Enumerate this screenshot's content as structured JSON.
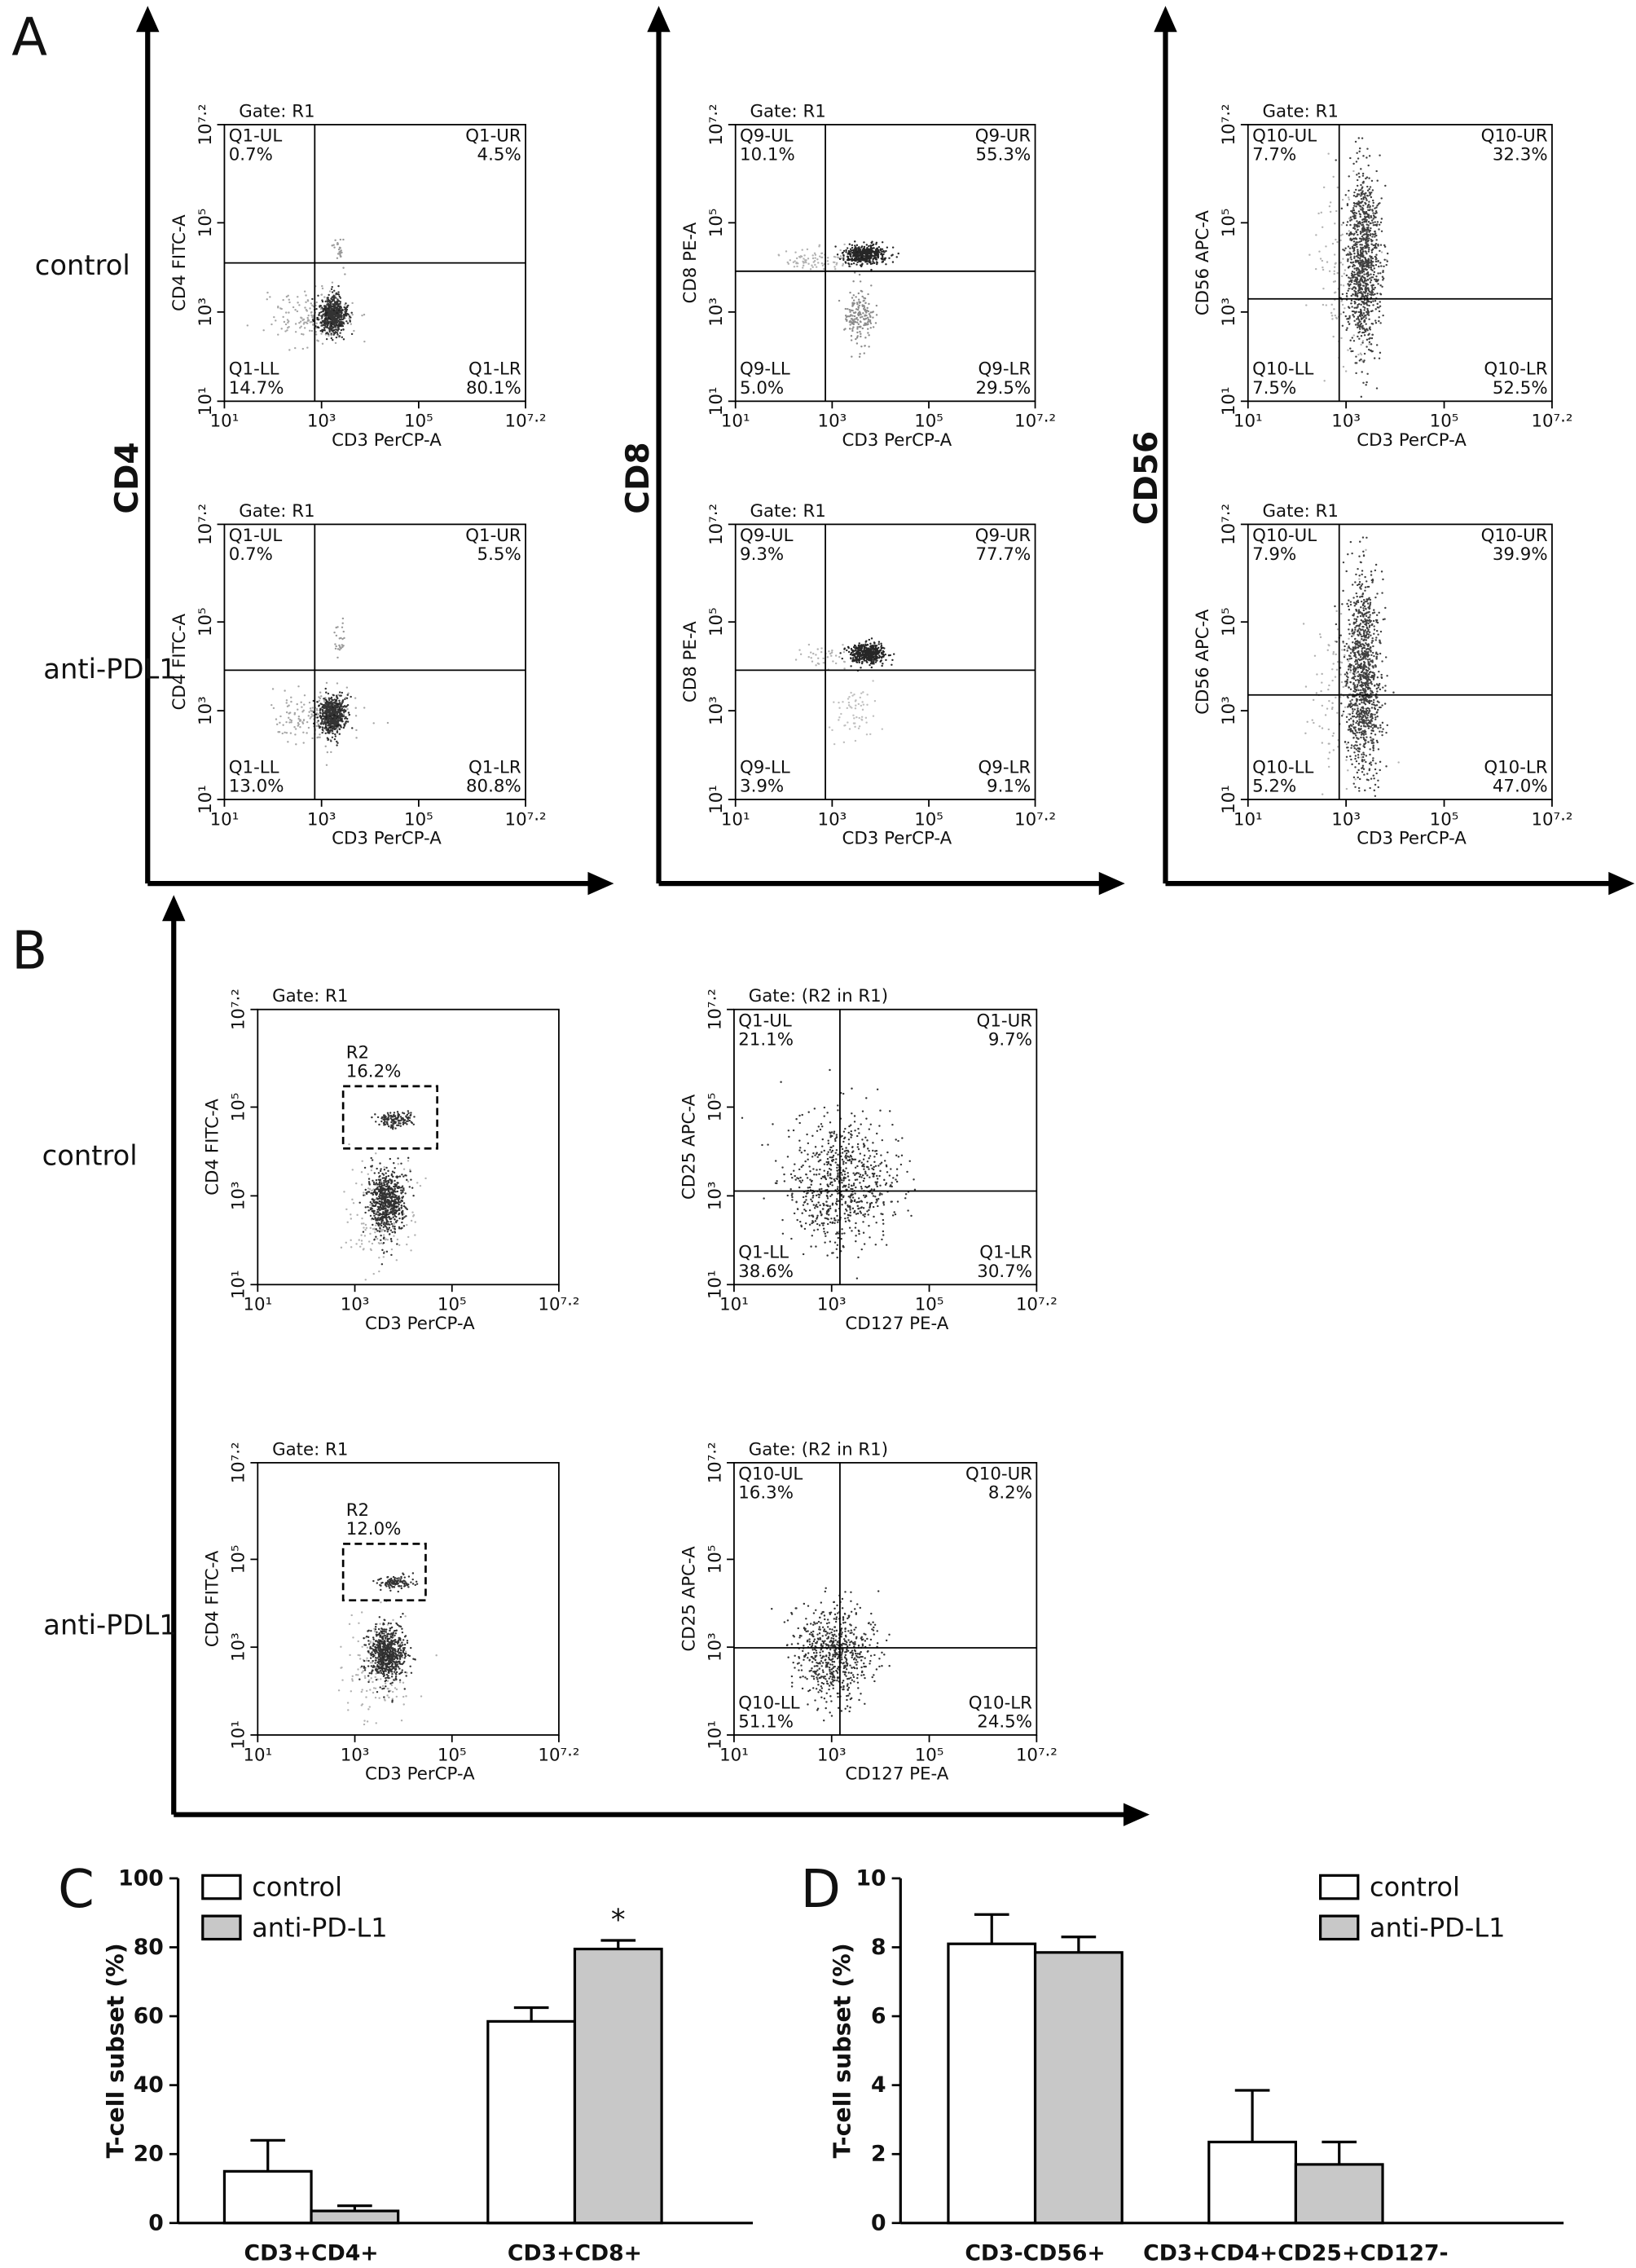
{
  "panel_labels": {
    "a": "A",
    "b": "B"
  },
  "flow_axis": {
    "log": true,
    "lim": [
      10,
      15848932
    ],
    "ticks": [
      {
        "value": 10,
        "label": "10¹"
      },
      {
        "value": 1000,
        "label": "10³"
      },
      {
        "value": 100000,
        "label": "10⁵"
      },
      {
        "value": 15848932,
        "label": "10⁷·²"
      }
    ]
  },
  "panel_a": {
    "row_labels": [
      "control",
      "anti-PDL1"
    ],
    "columns": [
      {
        "label": "CD4",
        "x_label": "CD3 PerCP-A",
        "y_label": "CD4 FITC-A",
        "quadrant_names": [
          "Q1-UL",
          "Q1-UR",
          "Q1-LL",
          "Q1-LR"
        ],
        "plots": [
          {
            "gate": "Gate: R1",
            "values": [
              0.7,
              4.5,
              14.7,
              80.1
            ],
            "value_labels": [
              "0.7%",
              "4.5%",
              "14.7%",
              "80.1%"
            ]
          },
          {
            "gate": "Gate: R1",
            "values": [
              0.7,
              5.5,
              13.0,
              80.8
            ],
            "value_labels": [
              "0.7%",
              "5.5%",
              "13.0%",
              "80.8%"
            ]
          }
        ]
      },
      {
        "label": "CD8",
        "x_label": "CD3 PerCP-A",
        "y_label": "CD8 PE-A",
        "quadrant_names": [
          "Q9-UL",
          "Q9-UR",
          "Q9-LL",
          "Q9-LR"
        ],
        "plots": [
          {
            "gate": "Gate: R1",
            "values": [
              10.1,
              55.3,
              5.0,
              29.5
            ],
            "value_labels": [
              "10.1%",
              "55.3%",
              "5.0%",
              "29.5%"
            ]
          },
          {
            "gate": "Gate: R1",
            "values": [
              9.3,
              77.7,
              3.9,
              9.1
            ],
            "value_labels": [
              "9.3%",
              "77.7%",
              "3.9%",
              "9.1%"
            ]
          }
        ]
      },
      {
        "label": "CD56",
        "x_label": "CD3 PerCP-A",
        "y_label": "CD56 APC-A",
        "quadrant_names": [
          "Q10-UL",
          "Q10-UR",
          "Q10-LL",
          "Q10-LR"
        ],
        "plots": [
          {
            "gate": "Gate: R1",
            "values": [
              7.7,
              32.3,
              7.5,
              52.5
            ],
            "value_labels": [
              "7.7%",
              "32.3%",
              "7.5%",
              "52.5%"
            ]
          },
          {
            "gate": "Gate: R1",
            "values": [
              7.9,
              39.9,
              5.2,
              47.0
            ],
            "value_labels": [
              "7.9%",
              "39.9%",
              "5.2%",
              "47.0%"
            ]
          }
        ]
      }
    ]
  },
  "panel_b": {
    "row_labels": [
      "control",
      "anti-PDL1"
    ],
    "rows": [
      {
        "gate_plot": {
          "gate": "Gate: R1",
          "x_label": "CD3 PerCP-A",
          "y_label": "CD4 FITC-A",
          "region": "R2",
          "value": 16.2,
          "value_label": "16.2%"
        },
        "quadrant_plot": {
          "gate": "Gate: (R2 in R1)",
          "x_label": "CD127 PE-A",
          "y_label": "CD25 APC-A",
          "quadrant_names": [
            "Q1-UL",
            "Q1-UR",
            "Q1-LL",
            "Q1-LR"
          ],
          "values": [
            21.1,
            9.7,
            38.6,
            30.7
          ],
          "value_labels": [
            "21.1%",
            "9.7%",
            "38.6%",
            "30.7%"
          ]
        }
      },
      {
        "gate_plot": {
          "gate": "Gate: R1",
          "x_label": "CD3 PerCP-A",
          "y_label": "CD4 FITC-A",
          "region": "R2",
          "value": 12.0,
          "value_label": "12.0%"
        },
        "quadrant_plot": {
          "gate": "Gate: (R2 in R1)",
          "x_label": "CD127 PE-A",
          "y_label": "CD25 APC-A",
          "quadrant_names": [
            "Q10-UL",
            "Q10-UR",
            "Q10-LL",
            "Q10-LR"
          ],
          "values": [
            16.3,
            8.2,
            51.1,
            24.5
          ],
          "value_labels": [
            "16.3%",
            "8.2%",
            "51.1%",
            "24.5%"
          ]
        }
      }
    ]
  },
  "chart_data": [
    {
      "type": "bar",
      "panel_label": "C",
      "y_label": "T-cell subset (%)",
      "categories": [
        "CD3+CD4+",
        "CD3+CD8+"
      ],
      "series": [
        {
          "name": "control",
          "color": "#ffffff",
          "values": [
            15,
            58.5
          ],
          "errors": [
            9,
            4
          ]
        },
        {
          "name": "anti-PD-L1",
          "color": "#c8c8c8",
          "values": [
            3.5,
            79.5
          ],
          "errors": [
            1.5,
            2.5
          ]
        }
      ],
      "ylim": [
        0,
        100
      ],
      "yticks": [
        0,
        20,
        40,
        60,
        80,
        100
      ],
      "annotation": "*"
    },
    {
      "type": "bar",
      "panel_label": "D",
      "y_label": "T-cell subset (%)",
      "categories": [
        "CD3-CD56+",
        "CD3+CD4+CD25+CD127-"
      ],
      "series": [
        {
          "name": "control",
          "color": "#ffffff",
          "values": [
            8.1,
            2.35
          ],
          "errors": [
            0.85,
            1.5
          ]
        },
        {
          "name": "anti-PD-L1",
          "color": "#c8c8c8",
          "values": [
            7.85,
            1.7
          ],
          "errors": [
            0.45,
            0.65
          ]
        }
      ],
      "ylim": [
        0,
        10
      ],
      "yticks": [
        0,
        2,
        4,
        6,
        8,
        10
      ]
    }
  ]
}
